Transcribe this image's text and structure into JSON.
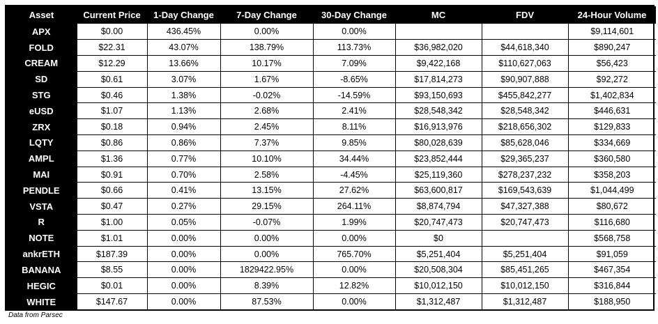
{
  "columns": [
    "Asset",
    "Current Price",
    "1-Day Change",
    "7-Day Change",
    "30-Day Change",
    "MC",
    "FDV",
    "24-Hour Volume"
  ],
  "rows": [
    [
      "APX",
      "$0.00",
      "436.45%",
      "0.00%",
      "0.00%",
      "",
      "",
      "$9,114,601"
    ],
    [
      "FOLD",
      "$22.31",
      "43.07%",
      "138.79%",
      "113.73%",
      "$36,982,020",
      "$44,618,340",
      "$890,247"
    ],
    [
      "CREAM",
      "$12.29",
      "13.66%",
      "10.17%",
      "7.09%",
      "$9,422,168",
      "$110,627,063",
      "$56,423"
    ],
    [
      "SD",
      "$0.61",
      "3.07%",
      "1.67%",
      "-8.65%",
      "$17,814,273",
      "$90,907,888",
      "$92,272"
    ],
    [
      "STG",
      "$0.46",
      "1.38%",
      "-0.02%",
      "-14.59%",
      "$93,150,693",
      "$455,842,277",
      "$1,402,834"
    ],
    [
      "eUSD",
      "$1.07",
      "1.13%",
      "2.68%",
      "2.41%",
      "$28,548,342",
      "$28,548,342",
      "$446,631"
    ],
    [
      "ZRX",
      "$0.18",
      "0.94%",
      "2.45%",
      "8.11%",
      "$16,913,976",
      "$218,656,302",
      "$129,833"
    ],
    [
      "LQTY",
      "$0.86",
      "0.86%",
      "7.37%",
      "9.85%",
      "$80,028,639",
      "$85,628,046",
      "$334,669"
    ],
    [
      "AMPL",
      "$1.36",
      "0.77%",
      "10.10%",
      "34.44%",
      "$23,852,444",
      "$29,365,237",
      "$360,580"
    ],
    [
      "MAI",
      "$0.91",
      "0.70%",
      "2.58%",
      "-4.45%",
      "$25,119,360",
      "$278,237,232",
      "$358,203"
    ],
    [
      "PENDLE",
      "$0.66",
      "0.41%",
      "13.15%",
      "27.62%",
      "$63,600,817",
      "$169,543,639",
      "$1,044,499"
    ],
    [
      "VSTA",
      "$0.47",
      "0.27%",
      "29.15%",
      "264.11%",
      "$8,874,794",
      "$47,327,388",
      "$80,672"
    ],
    [
      "R",
      "$1.00",
      "0.05%",
      "-0.07%",
      "1.99%",
      "$20,747,473",
      "$20,747,473",
      "$116,680"
    ],
    [
      "NOTE",
      "$1.01",
      "0.00%",
      "0.00%",
      "0.00%",
      "$0",
      "",
      "$568,758"
    ],
    [
      "ankrETH",
      "$187.39",
      "0.00%",
      "0.00%",
      "765.70%",
      "$5,251,404",
      "$5,251,404",
      "$91,059"
    ],
    [
      "BANANA",
      "$8.55",
      "0.00%",
      "1829422.95%",
      "0.00%",
      "$20,508,304",
      "$85,451,265",
      "$467,354"
    ],
    [
      "HEGIC",
      "$0.01",
      "0.00%",
      "8.39%",
      "12.82%",
      "$10,012,150",
      "$10,012,150",
      "$316,844"
    ],
    [
      "WHITE",
      "$147.67",
      "0.00%",
      "87.53%",
      "0.00%",
      "$1,312,487",
      "$1,312,487",
      "$188,950"
    ]
  ],
  "source_note": "Data from Parsec"
}
